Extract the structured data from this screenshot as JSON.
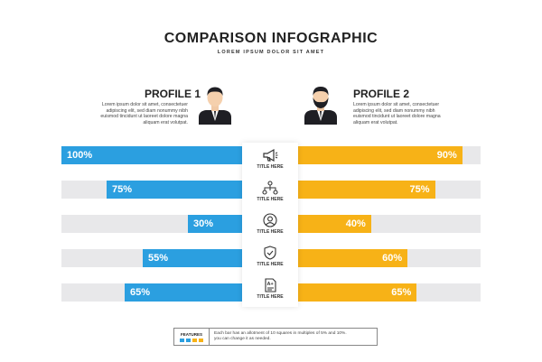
{
  "header": {
    "title": "COMPARISON INFOGRAPHIC",
    "subtitle": "LOREM IPSUM DOLOR SIT AMET"
  },
  "profiles": [
    {
      "name": "PROFILE 1",
      "description": "Lorem ipsum dolor sit amet, consectetuer adipiscing elit, sed diam nonummy nibh euismod tincidunt ut laoreet dolore magna aliquam erat volutpat.",
      "avatar_icon": "man-avatar-icon"
    },
    {
      "name": "PROFILE 2",
      "description": "Lorem ipsum dolor sit amet, consectetuer adipiscing elit, sed diam nonummy nibh euismod tincidunt ut laoreet dolore magna aliquam erat volutpat.",
      "avatar_icon": "bearded-man-avatar-icon"
    }
  ],
  "features": [
    {
      "label": "TITLE HERE",
      "icon": "megaphone-icon"
    },
    {
      "label": "TITLE HERE",
      "icon": "network-icon"
    },
    {
      "label": "TITLE HERE",
      "icon": "user-circle-icon"
    },
    {
      "label": "TITLE HERE",
      "icon": "shield-check-icon"
    },
    {
      "label": "TITLE HERE",
      "icon": "grade-document-icon"
    }
  ],
  "comparison": {
    "profile1_values": [
      "100%",
      "75%",
      "30%",
      "55%",
      "65%"
    ],
    "profile2_values": [
      "90%",
      "75%",
      "40%",
      "60%",
      "65%"
    ],
    "profile1_levels": [
      100,
      75,
      30,
      55,
      65
    ],
    "profile2_levels": [
      90,
      75,
      40,
      60,
      65
    ],
    "colors": {
      "profile1": "#2b9fe0",
      "profile2": "#f7b217",
      "track": "#e8e8ea"
    }
  },
  "footer": {
    "legend_title": "FEATURES",
    "note_line1": "Each bar has an allotment of 10 squares in multiples of 5% and 10%.",
    "note_line2": "you can change it as needed."
  }
}
